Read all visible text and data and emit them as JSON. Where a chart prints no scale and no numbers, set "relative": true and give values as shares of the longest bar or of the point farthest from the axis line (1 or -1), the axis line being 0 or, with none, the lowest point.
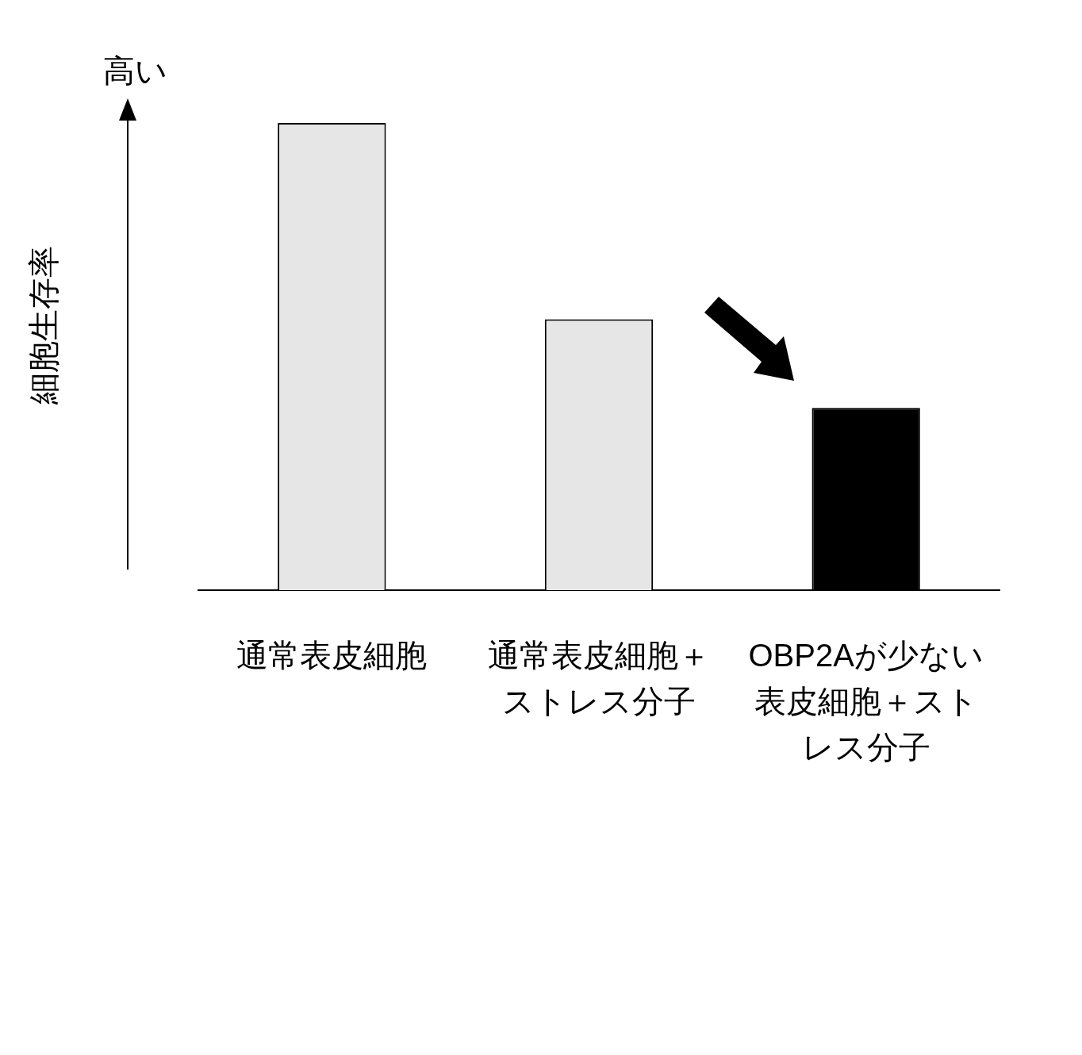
{
  "chart_data": {
    "type": "bar",
    "relative": true,
    "ylabel": "細胞生存率",
    "annotations": [
      "高い"
    ],
    "categories": [
      "通常表皮細胞",
      "通常表皮細胞＋ストレス分子",
      "OBP2Aが少ない表皮細胞＋ストレス分子"
    ],
    "values": [
      1,
      0.58,
      0.39
    ],
    "colors": [
      "#e7e6e6",
      "#e7e6e6",
      "#000000"
    ],
    "grid": false,
    "legend": false
  }
}
